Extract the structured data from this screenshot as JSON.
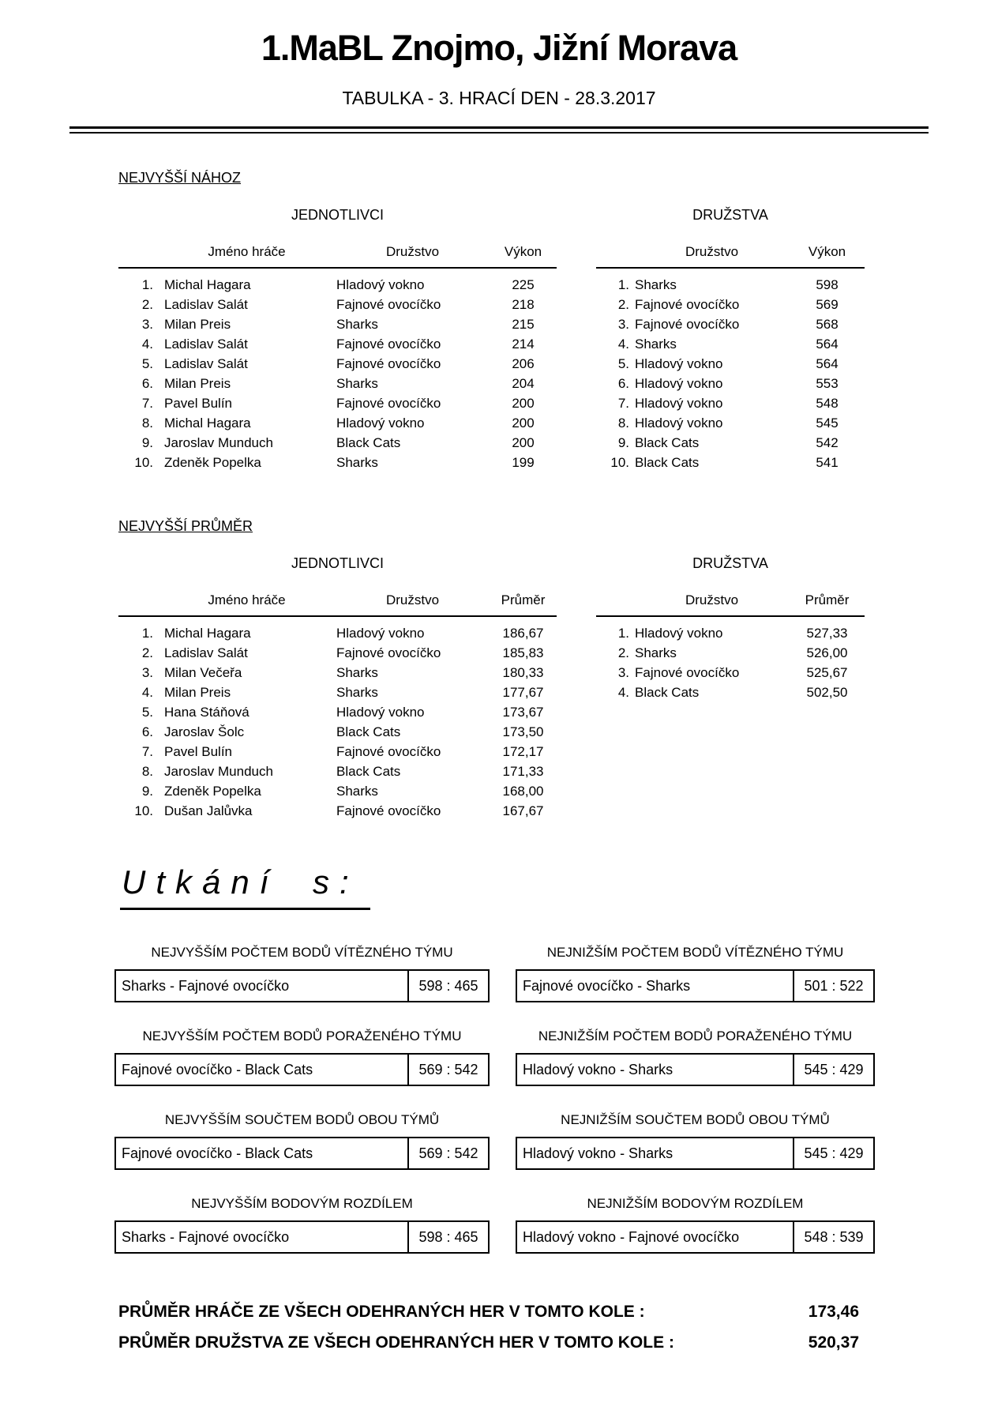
{
  "header": {
    "title": "1.MaBL Znojmo, Jižní Morava",
    "subtitle": "TABULKA - 3. HRACÍ DEN - 28.3.2017"
  },
  "sections": {
    "nahoz": {
      "heading": "NEJVYŠŠÍ NÁHOZ",
      "individuals": {
        "title": "JEDNOTLIVCI",
        "columns": {
          "name": "Jméno hráče",
          "team": "Družstvo",
          "value": "Výkon"
        },
        "rows": [
          {
            "rank": "1.",
            "name": "Michal Hagara",
            "team": "Hladový vokno",
            "value": "225"
          },
          {
            "rank": "2.",
            "name": "Ladislav Salát",
            "team": "Fajnové ovocíčko",
            "value": "218"
          },
          {
            "rank": "3.",
            "name": "Milan Preis",
            "team": "Sharks",
            "value": "215"
          },
          {
            "rank": "4.",
            "name": "Ladislav Salát",
            "team": "Fajnové ovocíčko",
            "value": "214"
          },
          {
            "rank": "5.",
            "name": "Ladislav Salát",
            "team": "Fajnové ovocíčko",
            "value": "206"
          },
          {
            "rank": "6.",
            "name": "Milan Preis",
            "team": "Sharks",
            "value": "204"
          },
          {
            "rank": "7.",
            "name": "Pavel Bulín",
            "team": "Fajnové ovocíčko",
            "value": "200"
          },
          {
            "rank": "8.",
            "name": "Michal Hagara",
            "team": "Hladový vokno",
            "value": "200"
          },
          {
            "rank": "9.",
            "name": "Jaroslav Munduch",
            "team": "Black Cats",
            "value": "200"
          },
          {
            "rank": "10.",
            "name": "Zdeněk Popelka",
            "team": "Sharks",
            "value": "199"
          }
        ]
      },
      "teams": {
        "title": "DRUŽSTVA",
        "columns": {
          "team": "Družstvo",
          "value": "Výkon"
        },
        "rows": [
          {
            "rank": "1.",
            "team": "Sharks",
            "value": "598"
          },
          {
            "rank": "2.",
            "team": "Fajnové ovocíčko",
            "value": "569"
          },
          {
            "rank": "3.",
            "team": "Fajnové ovocíčko",
            "value": "568"
          },
          {
            "rank": "4.",
            "team": "Sharks",
            "value": "564"
          },
          {
            "rank": "5.",
            "team": "Hladový vokno",
            "value": "564"
          },
          {
            "rank": "6.",
            "team": "Hladový vokno",
            "value": "553"
          },
          {
            "rank": "7.",
            "team": "Hladový vokno",
            "value": "548"
          },
          {
            "rank": "8.",
            "team": "Hladový vokno",
            "value": "545"
          },
          {
            "rank": "9.",
            "team": "Black Cats",
            "value": "542"
          },
          {
            "rank": "10.",
            "team": "Black Cats",
            "value": "541"
          }
        ]
      }
    },
    "prumer": {
      "heading": "NEJVYŠŠÍ PRŮMĚR",
      "individuals": {
        "title": "JEDNOTLIVCI",
        "columns": {
          "name": "Jméno hráče",
          "team": "Družstvo",
          "value": "Průměr"
        },
        "rows": [
          {
            "rank": "1.",
            "name": "Michal Hagara",
            "team": "Hladový vokno",
            "value": "186,67"
          },
          {
            "rank": "2.",
            "name": "Ladislav Salát",
            "team": "Fajnové ovocíčko",
            "value": "185,83"
          },
          {
            "rank": "3.",
            "name": "Milan Večeřa",
            "team": "Sharks",
            "value": "180,33"
          },
          {
            "rank": "4.",
            "name": "Milan Preis",
            "team": "Sharks",
            "value": "177,67"
          },
          {
            "rank": "5.",
            "name": "Hana Stáňová",
            "team": "Hladový vokno",
            "value": "173,67"
          },
          {
            "rank": "6.",
            "name": "Jaroslav Šolc",
            "team": "Black Cats",
            "value": "173,50"
          },
          {
            "rank": "7.",
            "name": "Pavel Bulín",
            "team": "Fajnové ovocíčko",
            "value": "172,17"
          },
          {
            "rank": "8.",
            "name": "Jaroslav Munduch",
            "team": "Black Cats",
            "value": "171,33"
          },
          {
            "rank": "9.",
            "name": "Zdeněk Popelka",
            "team": "Sharks",
            "value": "168,00"
          },
          {
            "rank": "10.",
            "name": "Dušan Jalůvka",
            "team": "Fajnové ovocíčko",
            "value": "167,67"
          }
        ]
      },
      "teams": {
        "title": "DRUŽSTVA",
        "columns": {
          "team": "Družstvo",
          "value": "Průměr"
        },
        "rows": [
          {
            "rank": "1.",
            "team": "Hladový vokno",
            "value": "527,33"
          },
          {
            "rank": "2.",
            "team": "Sharks",
            "value": "526,00"
          },
          {
            "rank": "3.",
            "team": "Fajnové ovocíčko",
            "value": "525,67"
          },
          {
            "rank": "4.",
            "team": "Black Cats",
            "value": "502,50"
          }
        ]
      }
    }
  },
  "utkani": {
    "heading": "Utkání s:",
    "boxes": [
      {
        "label": "NEJVYŠŠÍM POČTEM BODŮ VÍTĚZNÉHO TÝMU",
        "match": "Sharks - Fajnové ovocíčko",
        "score": "598 : 465"
      },
      {
        "label": "NEJNIŽŠÍM POČTEM BODŮ VÍTĚZNÉHO TÝMU",
        "match": "Fajnové ovocíčko - Sharks",
        "score": "501 : 522"
      },
      {
        "label": "NEJVYŠŠÍM POČTEM BODŮ PORAŽENÉHO TÝMU",
        "match": "Fajnové ovocíčko - Black Cats",
        "score": "569 : 542"
      },
      {
        "label": "NEJNIŽŠÍM POČTEM BODŮ PORAŽENÉHO TÝMU",
        "match": "Hladový vokno - Sharks",
        "score": "545 : 429"
      },
      {
        "label": "NEJVYŠŠÍM SOUČTEM BODŮ OBOU TÝMŮ",
        "match": "Fajnové ovocíčko - Black Cats",
        "score": "569 : 542"
      },
      {
        "label": "NEJNIŽŠÍM SOUČTEM BODŮ OBOU TÝMŮ",
        "match": "Hladový vokno - Sharks",
        "score": "545 : 429"
      },
      {
        "label": "NEJVYŠŠÍM BODOVÝM ROZDÍLEM",
        "match": "Sharks - Fajnové ovocíčko",
        "score": "598 : 465"
      },
      {
        "label": "NEJNIŽŠÍM BODOVÝM ROZDÍLEM",
        "match": "Hladový vokno - Fajnové ovocíčko",
        "score": "548 : 539"
      }
    ]
  },
  "summary": {
    "rows": [
      {
        "label": "PRŮMĚR HRÁČE ZE VŠECH ODEHRANÝCH HER V TOMTO KOLE :",
        "value": "173,46"
      },
      {
        "label": "PRŮMĚR DRUŽSTVA ZE VŠECH ODEHRANÝCH HER V TOMTO KOLE :",
        "value": "520,37"
      }
    ]
  }
}
